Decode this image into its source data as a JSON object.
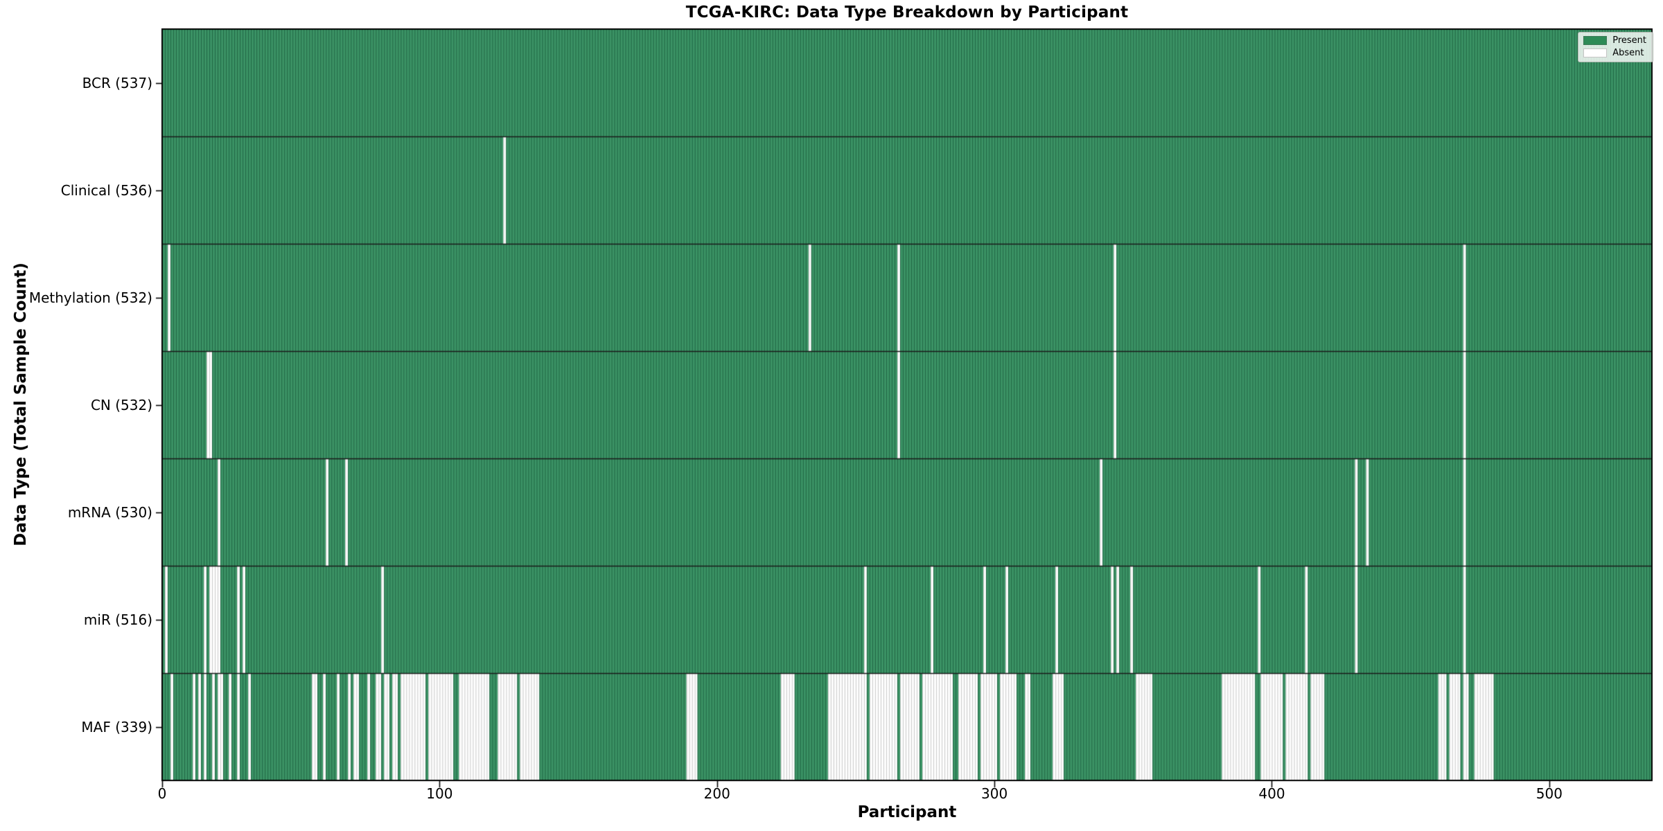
{
  "chart_data": {
    "type": "heatmap",
    "title": "TCGA-KIRC: Data Type Breakdown by Participant",
    "xlabel": "Participant",
    "ylabel": "Data Type (Total Sample Count)",
    "total_participants": 537,
    "x_range": [
      0,
      537
    ],
    "x_ticks": [
      0,
      100,
      200,
      300,
      400,
      500
    ],
    "grid": false,
    "legend_position": "upper right",
    "legend": [
      {
        "label": "Present",
        "value": "present"
      },
      {
        "label": "Absent",
        "value": "absent"
      }
    ],
    "colors": {
      "present_fill": "#3c9466",
      "present_edge": "#226946",
      "absent_fill": "#ffffff",
      "absent_edge": "#cccccc",
      "row_separator": "#1a1a1a",
      "plot_border": "#000000",
      "legend_swatch_present": "#2e8b57",
      "legend_swatch_absent": "#ffffff"
    },
    "rows": [
      {
        "name": "BCR",
        "label": "BCR (537)",
        "present_count": 537,
        "absent": []
      },
      {
        "name": "Clinical",
        "label": "Clinical (536)",
        "present_count": 536,
        "absent": [
          123
        ]
      },
      {
        "name": "Methylation",
        "label": "Methylation (532)",
        "present_count": 532,
        "absent": [
          2,
          233,
          265,
          343,
          469
        ]
      },
      {
        "name": "CN",
        "label": "CN (532)",
        "present_count": 532,
        "absent": [
          16,
          17,
          265,
          343,
          469
        ]
      },
      {
        "name": "mRNA",
        "label": "mRNA (530)",
        "present_count": 530,
        "absent": [
          20,
          59,
          66,
          338,
          430,
          434,
          469
        ]
      },
      {
        "name": "miR",
        "label": "miR (516)",
        "present_count": 516,
        "absent": [
          1,
          15,
          17,
          18,
          19,
          20,
          27,
          29,
          79,
          253,
          277,
          296,
          304,
          322,
          342,
          344,
          349,
          395,
          412,
          430,
          469
        ]
      },
      {
        "name": "MAF",
        "label": "MAF (339)",
        "present_count": 339,
        "absent": [
          3,
          11,
          13,
          15,
          18,
          [
            20,
            21
          ],
          24,
          27,
          31,
          [
            54,
            55
          ],
          58,
          63,
          67,
          [
            69,
            70
          ],
          74,
          [
            77,
            78
          ],
          [
            80,
            81
          ],
          [
            83,
            84
          ],
          [
            86,
            94
          ],
          [
            96,
            104
          ],
          [
            107,
            117
          ],
          [
            121,
            127
          ],
          [
            129,
            135
          ],
          [
            189,
            192
          ],
          [
            223,
            227
          ],
          [
            240,
            253
          ],
          [
            255,
            264
          ],
          [
            266,
            272
          ],
          [
            274,
            284
          ],
          [
            287,
            293
          ],
          [
            295,
            300
          ],
          [
            302,
            307
          ],
          [
            311,
            312
          ],
          [
            321,
            324
          ],
          [
            351,
            356
          ],
          [
            382,
            393
          ],
          [
            396,
            403
          ],
          [
            405,
            412
          ],
          [
            414,
            418
          ],
          [
            460,
            462
          ],
          [
            464,
            467
          ],
          [
            469,
            470
          ],
          [
            473,
            479
          ]
        ]
      }
    ]
  }
}
